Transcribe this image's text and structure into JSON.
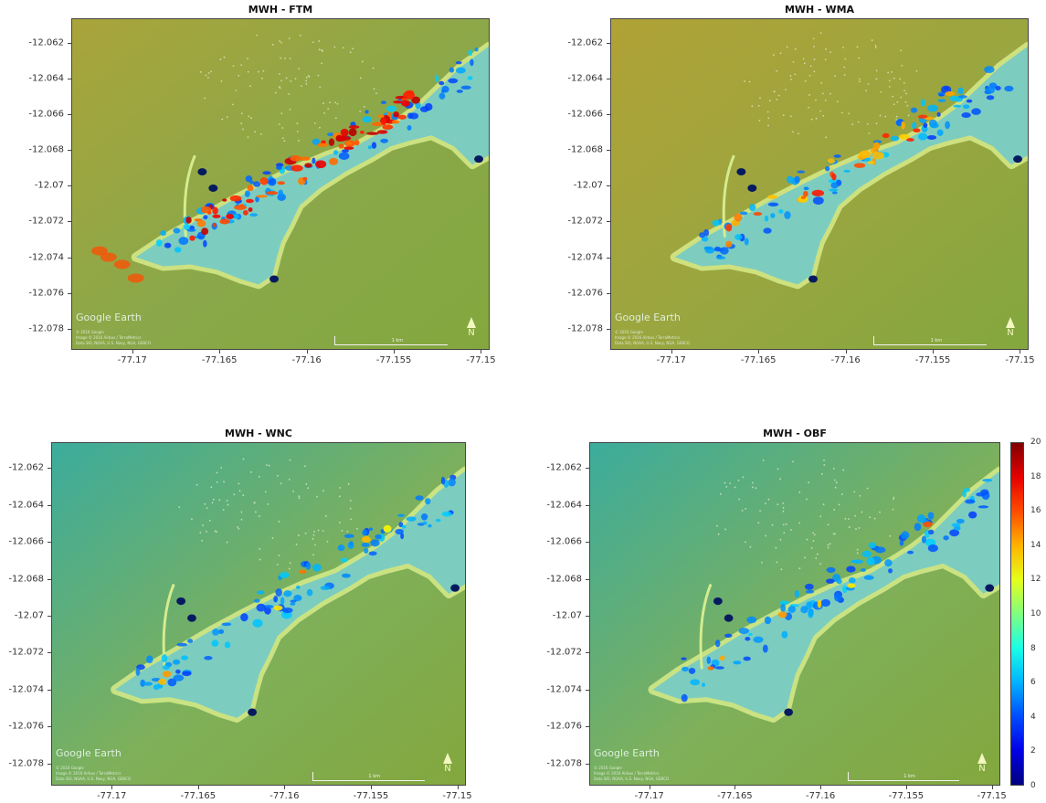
{
  "chart_data": [
    {
      "type": "heatmap",
      "title": "MWH - FTM",
      "xticks": [
        "-77.17",
        "-77.165",
        "-77.16",
        "-77.155",
        "-77.15"
      ],
      "yticks": [
        "-12.062",
        "-12.064",
        "-12.066",
        "-12.068",
        "-12.07",
        "-12.072",
        "-12.074",
        "-12.076",
        "-12.078"
      ],
      "xlim": [
        -77.1735,
        -77.1495
      ],
      "ylim": [
        -12.0792,
        -12.0606
      ],
      "hotspot_level": "high"
    },
    {
      "type": "heatmap",
      "title": "MWH - WMA",
      "xticks": [
        "-77.17",
        "-77.165",
        "-77.16",
        "-77.155",
        "-77.15"
      ],
      "yticks": [
        "-12.062",
        "-12.064",
        "-12.066",
        "-12.068",
        "-12.07",
        "-12.072",
        "-12.074",
        "-12.076",
        "-12.078"
      ],
      "xlim": [
        -77.1735,
        -77.1495
      ],
      "ylim": [
        -12.0792,
        -12.0606
      ],
      "hotspot_level": "medium"
    },
    {
      "type": "heatmap",
      "title": "MWH - WNC",
      "xticks": [
        "-77.17",
        "-77.165",
        "-77.16",
        "-77.155",
        "-77.15"
      ],
      "yticks": [
        "-12.062",
        "-12.064",
        "-12.066",
        "-12.068",
        "-12.07",
        "-12.072",
        "-12.074",
        "-12.076",
        "-12.078"
      ],
      "xlim": [
        -77.1735,
        -77.1495
      ],
      "ylim": [
        -12.0792,
        -12.0606
      ],
      "hotspot_level": "low"
    },
    {
      "type": "heatmap",
      "title": "MWH - OBF",
      "xticks": [
        "-77.17",
        "-77.165",
        "-77.16",
        "-77.155",
        "-77.15"
      ],
      "yticks": [
        "-12.062",
        "-12.064",
        "-12.066",
        "-12.068",
        "-12.07",
        "-12.072",
        "-12.074",
        "-12.076",
        "-12.078"
      ],
      "xlim": [
        -77.1735,
        -77.1495
      ],
      "ylim": [
        -12.0792,
        -12.0606
      ],
      "hotspot_level": "low"
    }
  ],
  "colorbar": {
    "range": [
      0,
      20
    ],
    "ticks": [
      "0",
      "2",
      "4",
      "6",
      "8",
      "10",
      "12",
      "14",
      "16",
      "18",
      "20"
    ],
    "colormap": "jet"
  },
  "overlay": {
    "logo": "Google Earth",
    "credits": [
      "© 2016 Google",
      "Image © 2016 Airbus / TerraMetrics",
      "Data SIO, NOAA, U.S. Navy, NGA, GEBCO"
    ],
    "scale_label": "1 km",
    "north_label": "N"
  }
}
